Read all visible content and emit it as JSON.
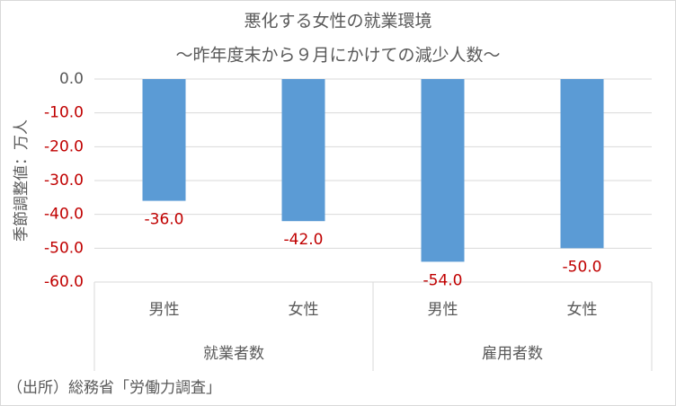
{
  "chart_data": {
    "type": "bar",
    "title": "悪化する女性の就業環境",
    "subtitle": "～昨年度末から９月にかけての減少人数～",
    "y_label": "季節調整値：万人",
    "source": "（出所）総務省「労働力調査」",
    "groups": [
      {
        "name": "就業者数",
        "categories": [
          "男性",
          "女性"
        ]
      },
      {
        "name": "雇用者数",
        "categories": [
          "男性",
          "女性"
        ]
      }
    ],
    "values": [
      -36,
      -42,
      -54,
      -50
    ],
    "value_labels": [
      "-36.0",
      "-42.0",
      "-54.0",
      "-50.0"
    ],
    "color": "#5b9bd5",
    "negative_color": "#c00000",
    "ylim": [
      -60,
      0
    ],
    "yticks": [
      {
        "value": 0,
        "label": "0.0"
      },
      {
        "value": -10,
        "label": "-10.0"
      },
      {
        "value": -20,
        "label": "-20.0"
      },
      {
        "value": -30,
        "label": "-30.0"
      },
      {
        "value": -40,
        "label": "-40.0"
      },
      {
        "value": -50,
        "label": "-50.0"
      },
      {
        "value": -60,
        "label": "-60.0"
      }
    ],
    "grid": true
  }
}
